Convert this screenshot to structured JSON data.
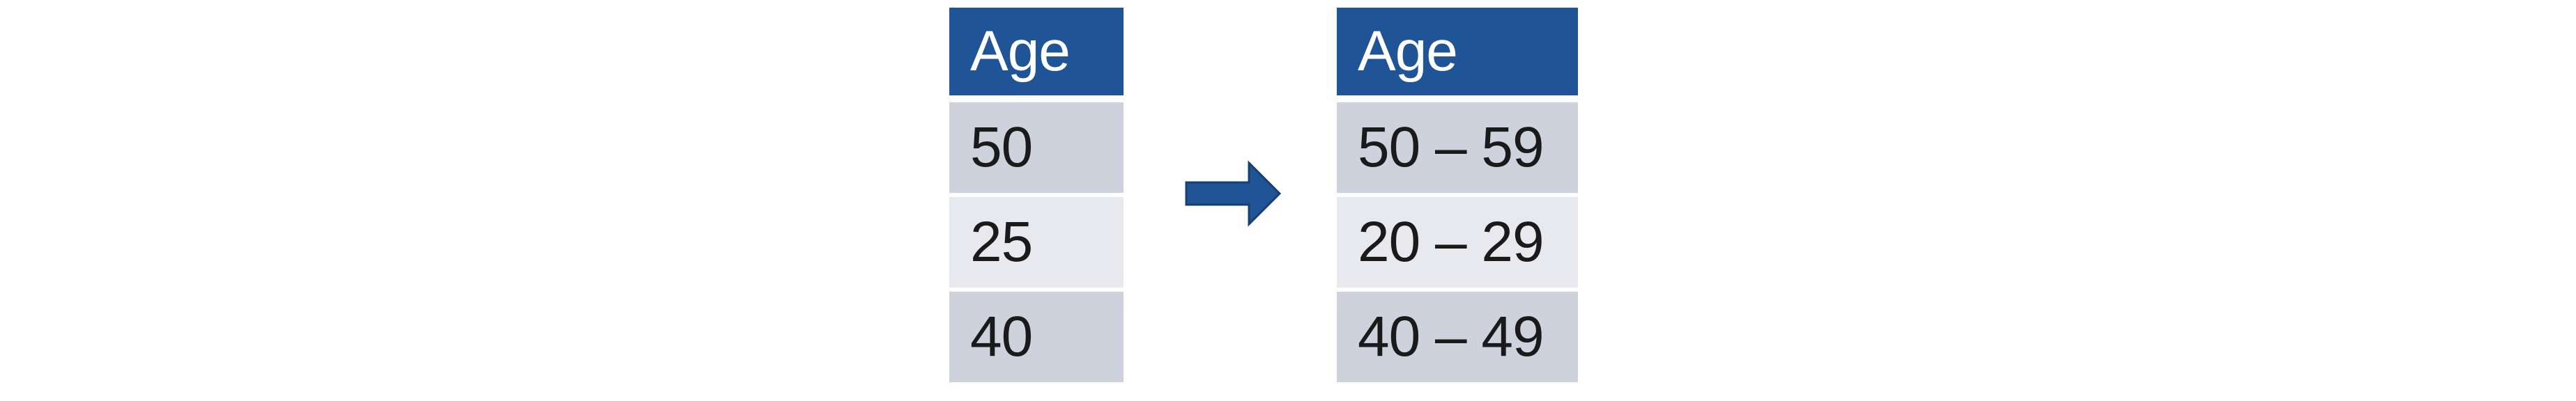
{
  "before_table": {
    "header": "Age",
    "rows": [
      "50",
      "25",
      "40"
    ]
  },
  "after_table": {
    "header": "Age",
    "rows": [
      "50 – 59",
      "20 – 29",
      "40 – 49"
    ]
  },
  "colors": {
    "header_bg": "#1f5596",
    "row_dark": "#cdd2dc",
    "row_light": "#e8e9ee",
    "arrow": "#1f5596"
  },
  "icons": {
    "arrow": "right-arrow-icon"
  }
}
